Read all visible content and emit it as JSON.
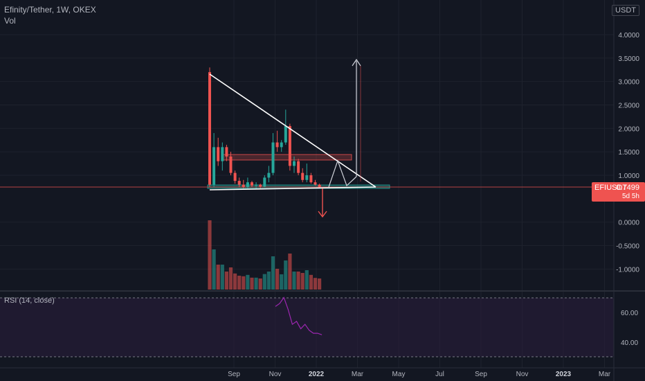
{
  "header": {
    "title": "Efinity/Tether, 1W, OKEX",
    "volume_label": "Vol",
    "currency": "USDT"
  },
  "price_tag": {
    "symbol": "EFIUSDT",
    "value": "0.7499",
    "countdown": "5d 5h"
  },
  "rsi": {
    "label": "RSI (14, close)",
    "ticks": [
      "60.00",
      "40.00"
    ]
  },
  "colors": {
    "up": "#26a69a",
    "down": "#ef5350",
    "background": "#131722",
    "rsi_line": "#9c27b0",
    "drawing": "#ffffff"
  },
  "chart_data": {
    "type": "candlestick",
    "title": "Efinity/Tether, 1W, OKEX",
    "y_ticks": [
      "4.0000",
      "3.5000",
      "3.0000",
      "2.5000",
      "2.0000",
      "1.5000",
      "1.0000",
      "0.0000",
      "-0.5000",
      "-1.0000"
    ],
    "x_ticks": [
      "Sep",
      "Nov",
      "2022",
      "Mar",
      "May",
      "Jul",
      "Sep",
      "Nov",
      "2023",
      "Mar"
    ],
    "ylim": [
      -1.5,
      4.5
    ],
    "candles": [
      {
        "o": 3.2,
        "h": 3.3,
        "l": 0.75,
        "c": 0.8
      },
      {
        "o": 0.8,
        "h": 1.9,
        "l": 0.75,
        "c": 1.6
      },
      {
        "o": 1.6,
        "h": 1.8,
        "l": 1.2,
        "c": 1.3
      },
      {
        "o": 1.3,
        "h": 1.7,
        "l": 1.1,
        "c": 1.6
      },
      {
        "o": 1.6,
        "h": 1.65,
        "l": 1.3,
        "c": 1.4
      },
      {
        "o": 1.4,
        "h": 1.5,
        "l": 1.0,
        "c": 1.05
      },
      {
        "o": 1.05,
        "h": 1.1,
        "l": 0.82,
        "c": 0.88
      },
      {
        "o": 0.88,
        "h": 0.95,
        "l": 0.75,
        "c": 0.8
      },
      {
        "o": 0.8,
        "h": 0.9,
        "l": 0.72,
        "c": 0.75
      },
      {
        "o": 0.75,
        "h": 0.95,
        "l": 0.72,
        "c": 0.85
      },
      {
        "o": 0.85,
        "h": 0.88,
        "l": 0.75,
        "c": 0.78
      },
      {
        "o": 0.78,
        "h": 0.85,
        "l": 0.72,
        "c": 0.8
      },
      {
        "o": 0.8,
        "h": 0.82,
        "l": 0.72,
        "c": 0.76
      },
      {
        "o": 0.76,
        "h": 1.0,
        "l": 0.74,
        "c": 0.95
      },
      {
        "o": 0.95,
        "h": 1.2,
        "l": 0.85,
        "c": 1.05
      },
      {
        "o": 1.05,
        "h": 1.9,
        "l": 1.0,
        "c": 1.7
      },
      {
        "o": 1.7,
        "h": 1.95,
        "l": 1.5,
        "c": 1.6
      },
      {
        "o": 1.6,
        "h": 1.75,
        "l": 1.5,
        "c": 1.7
      },
      {
        "o": 1.7,
        "h": 2.4,
        "l": 1.65,
        "c": 2.05
      },
      {
        "o": 2.05,
        "h": 2.1,
        "l": 1.1,
        "c": 1.2
      },
      {
        "o": 1.2,
        "h": 1.4,
        "l": 1.05,
        "c": 1.3
      },
      {
        "o": 1.3,
        "h": 1.35,
        "l": 1.0,
        "c": 1.05
      },
      {
        "o": 1.05,
        "h": 1.15,
        "l": 0.85,
        "c": 0.9
      },
      {
        "o": 0.9,
        "h": 1.25,
        "l": 0.85,
        "c": 1.0
      },
      {
        "o": 1.0,
        "h": 1.05,
        "l": 0.82,
        "c": 0.85
      },
      {
        "o": 0.85,
        "h": 0.9,
        "l": 0.78,
        "c": 0.8
      },
      {
        "o": 0.8,
        "h": 0.82,
        "l": 0.72,
        "c": 0.75
      }
    ],
    "rsi_values": [
      64,
      66,
      70,
      62,
      52,
      54,
      49,
      52,
      48,
      46,
      46,
      45
    ]
  }
}
